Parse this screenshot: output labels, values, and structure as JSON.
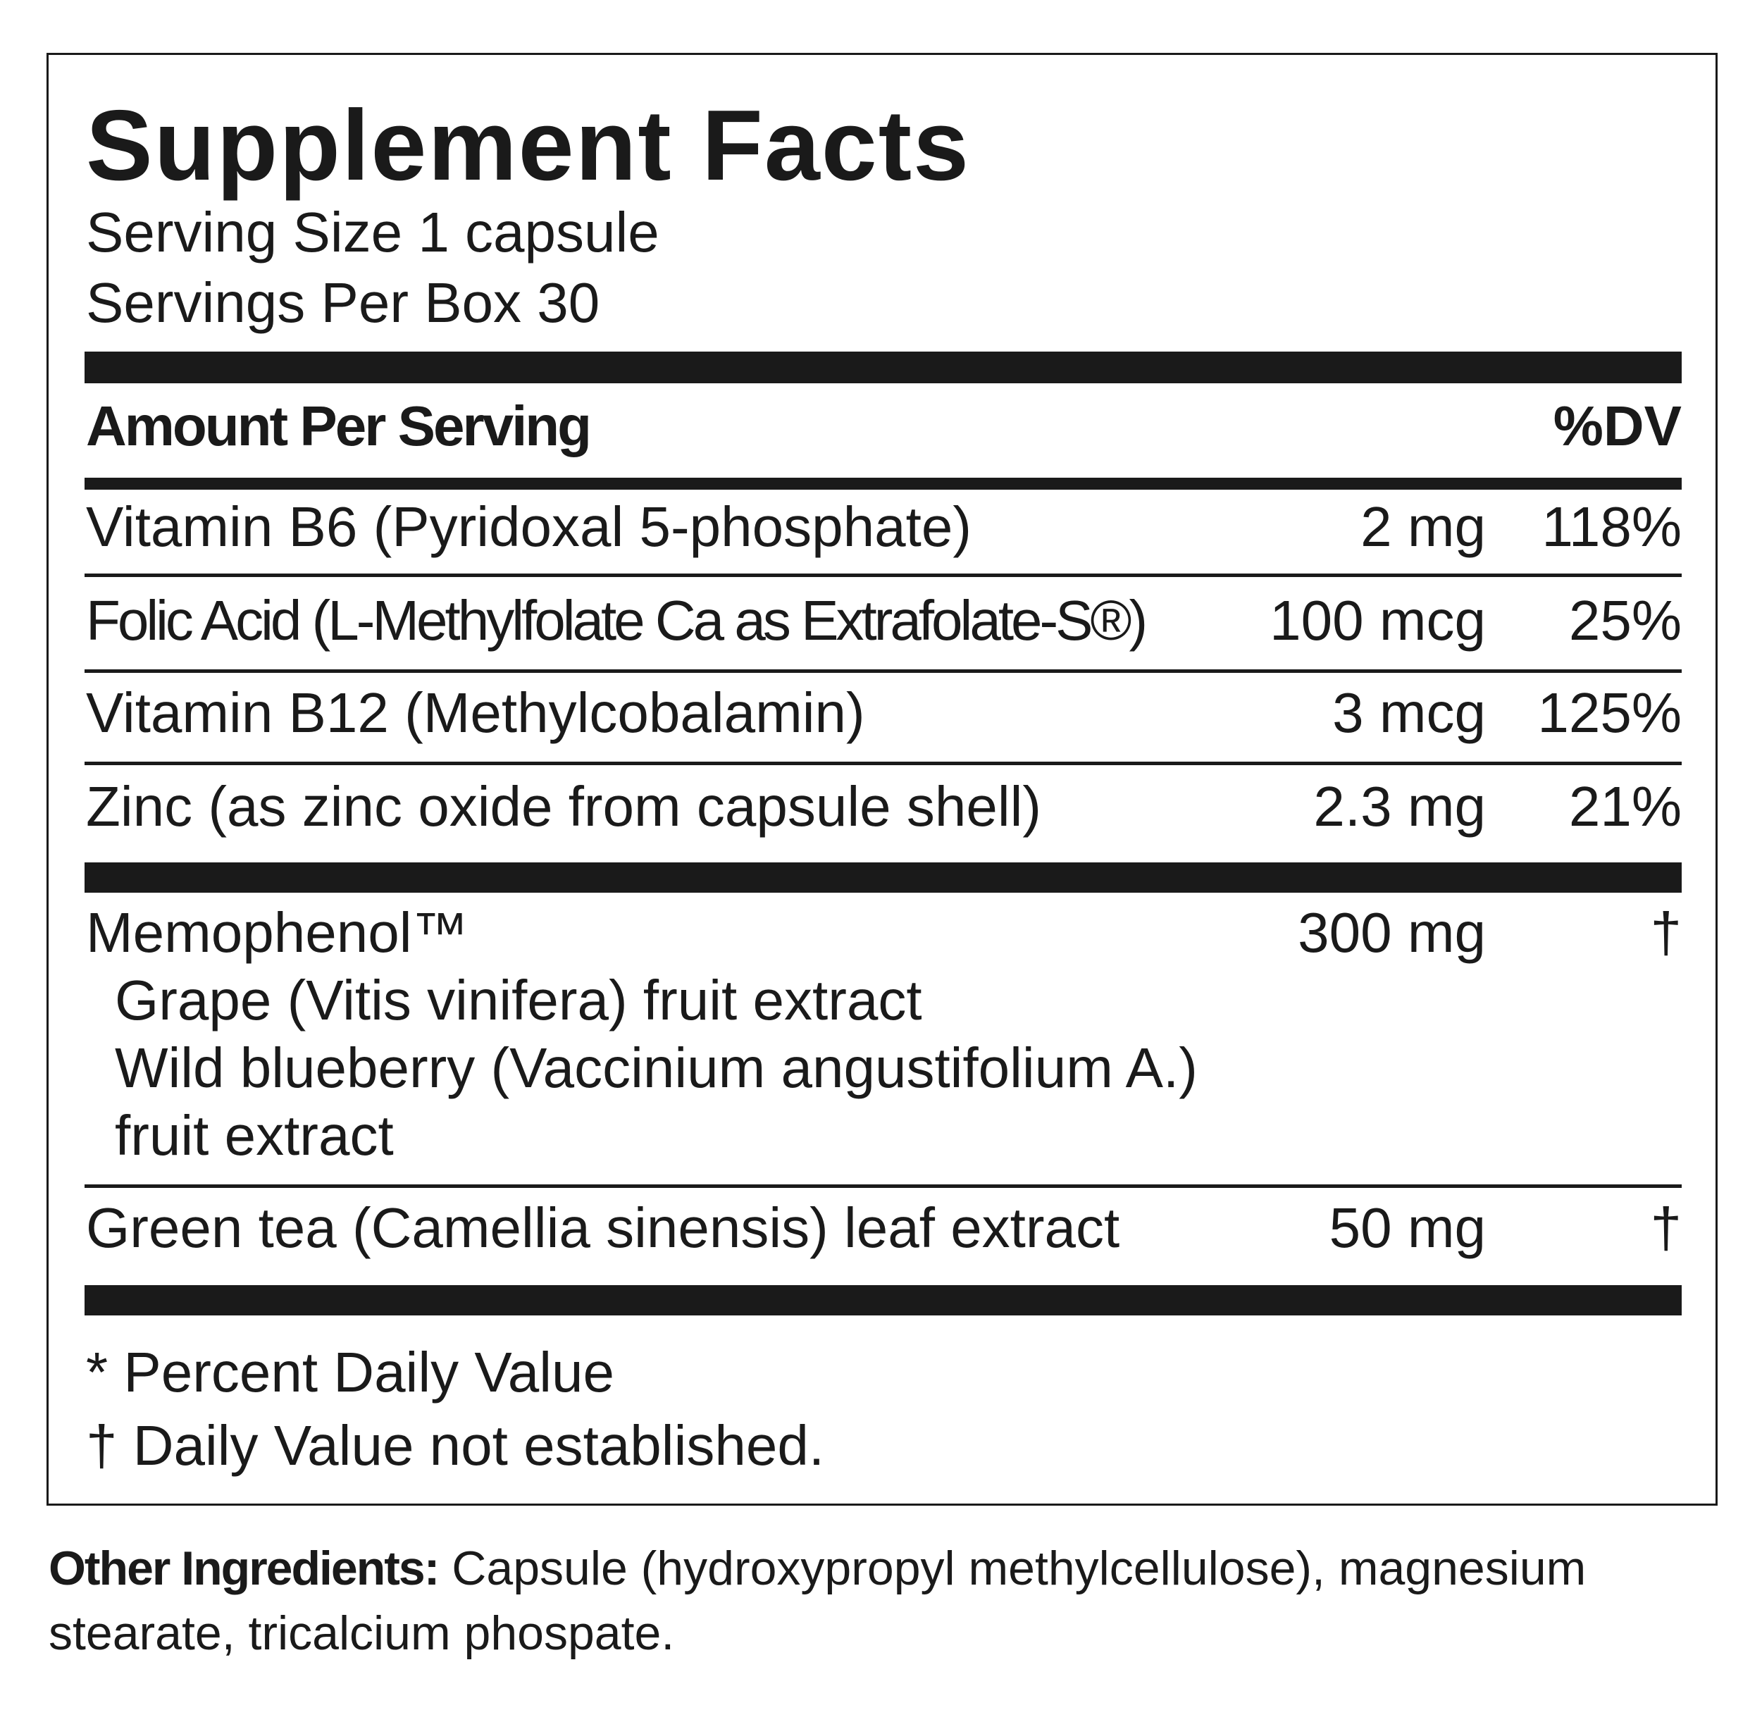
{
  "title": "Supplement Facts",
  "serving_size": "Serving Size 1 capsule",
  "servings_per": "Servings Per Box 30",
  "header": {
    "amount": "Amount Per Serving",
    "dv": "%DV"
  },
  "rows": [
    {
      "name": "Vitamin B6 (Pyridoxal 5-phosphate)",
      "amount": "2 mg",
      "dv": "118%"
    },
    {
      "name": "Folic Acid (L-Methylfolate Ca as Extrafolate-S®)",
      "amount": "100 mcg",
      "dv": "25%"
    },
    {
      "name": "Vitamin B12 (Methylcobalamin)",
      "amount": "3 mcg",
      "dv": "125%"
    },
    {
      "name": "Zinc (as zinc oxide from capsule shell)",
      "amount": "2.3 mg",
      "dv": "21%"
    }
  ],
  "blend": {
    "name": "Memophenol™",
    "amount": "300 mg",
    "dv": "†",
    "components": [
      "Grape (Vitis vinifera) fruit extract",
      "Wild blueberry (Vaccinium angustifolium A.)",
      "fruit extract"
    ]
  },
  "green_tea": {
    "name": "Green tea (Camellia sinensis) leaf extract",
    "amount": "50 mg",
    "dv": "†"
  },
  "footnotes": [
    "* Percent Daily Value",
    "† Daily Value not established."
  ],
  "other_ingredients": {
    "label": "Other Ingredients:",
    "line1": " Capsule (hydroxypropyl methylcellulose), magnesium",
    "line2": "stearate, tricalcium phospate."
  }
}
